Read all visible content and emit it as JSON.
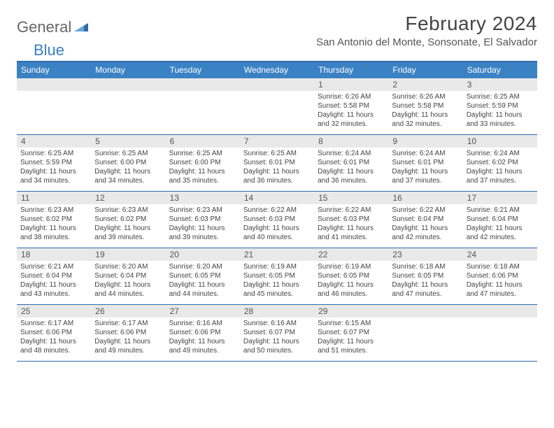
{
  "brand": {
    "part1": "General",
    "part2": "Blue"
  },
  "title": "February 2024",
  "location": "San Antonio del Monte, Sonsonate, El Salvador",
  "colors": {
    "header_bar": "#3b82c4",
    "rule": "#2f6aa8",
    "daynum_bg": "#e9e9e9",
    "text": "#444444",
    "brand_gray": "#666666",
    "brand_blue": "#3a7fc4",
    "background": "#ffffff"
  },
  "dows": [
    "Sunday",
    "Monday",
    "Tuesday",
    "Wednesday",
    "Thursday",
    "Friday",
    "Saturday"
  ],
  "weeks": [
    {
      "nums": [
        "",
        "",
        "",
        "",
        "1",
        "2",
        "3"
      ],
      "cells": [
        {
          "sunrise": "",
          "sunset": "",
          "daylight": ""
        },
        {
          "sunrise": "",
          "sunset": "",
          "daylight": ""
        },
        {
          "sunrise": "",
          "sunset": "",
          "daylight": ""
        },
        {
          "sunrise": "",
          "sunset": "",
          "daylight": ""
        },
        {
          "sunrise": "Sunrise: 6:26 AM",
          "sunset": "Sunset: 5:58 PM",
          "daylight": "Daylight: 11 hours and 32 minutes."
        },
        {
          "sunrise": "Sunrise: 6:26 AM",
          "sunset": "Sunset: 5:58 PM",
          "daylight": "Daylight: 11 hours and 32 minutes."
        },
        {
          "sunrise": "Sunrise: 6:25 AM",
          "sunset": "Sunset: 5:59 PM",
          "daylight": "Daylight: 11 hours and 33 minutes."
        }
      ]
    },
    {
      "nums": [
        "4",
        "5",
        "6",
        "7",
        "8",
        "9",
        "10"
      ],
      "cells": [
        {
          "sunrise": "Sunrise: 6:25 AM",
          "sunset": "Sunset: 5:59 PM",
          "daylight": "Daylight: 11 hours and 34 minutes."
        },
        {
          "sunrise": "Sunrise: 6:25 AM",
          "sunset": "Sunset: 6:00 PM",
          "daylight": "Daylight: 11 hours and 34 minutes."
        },
        {
          "sunrise": "Sunrise: 6:25 AM",
          "sunset": "Sunset: 6:00 PM",
          "daylight": "Daylight: 11 hours and 35 minutes."
        },
        {
          "sunrise": "Sunrise: 6:25 AM",
          "sunset": "Sunset: 6:01 PM",
          "daylight": "Daylight: 11 hours and 36 minutes."
        },
        {
          "sunrise": "Sunrise: 6:24 AM",
          "sunset": "Sunset: 6:01 PM",
          "daylight": "Daylight: 11 hours and 36 minutes."
        },
        {
          "sunrise": "Sunrise: 6:24 AM",
          "sunset": "Sunset: 6:01 PM",
          "daylight": "Daylight: 11 hours and 37 minutes."
        },
        {
          "sunrise": "Sunrise: 6:24 AM",
          "sunset": "Sunset: 6:02 PM",
          "daylight": "Daylight: 11 hours and 37 minutes."
        }
      ]
    },
    {
      "nums": [
        "11",
        "12",
        "13",
        "14",
        "15",
        "16",
        "17"
      ],
      "cells": [
        {
          "sunrise": "Sunrise: 6:23 AM",
          "sunset": "Sunset: 6:02 PM",
          "daylight": "Daylight: 11 hours and 38 minutes."
        },
        {
          "sunrise": "Sunrise: 6:23 AM",
          "sunset": "Sunset: 6:02 PM",
          "daylight": "Daylight: 11 hours and 39 minutes."
        },
        {
          "sunrise": "Sunrise: 6:23 AM",
          "sunset": "Sunset: 6:03 PM",
          "daylight": "Daylight: 11 hours and 39 minutes."
        },
        {
          "sunrise": "Sunrise: 6:22 AM",
          "sunset": "Sunset: 6:03 PM",
          "daylight": "Daylight: 11 hours and 40 minutes."
        },
        {
          "sunrise": "Sunrise: 6:22 AM",
          "sunset": "Sunset: 6:03 PM",
          "daylight": "Daylight: 11 hours and 41 minutes."
        },
        {
          "sunrise": "Sunrise: 6:22 AM",
          "sunset": "Sunset: 6:04 PM",
          "daylight": "Daylight: 11 hours and 42 minutes."
        },
        {
          "sunrise": "Sunrise: 6:21 AM",
          "sunset": "Sunset: 6:04 PM",
          "daylight": "Daylight: 11 hours and 42 minutes."
        }
      ]
    },
    {
      "nums": [
        "18",
        "19",
        "20",
        "21",
        "22",
        "23",
        "24"
      ],
      "cells": [
        {
          "sunrise": "Sunrise: 6:21 AM",
          "sunset": "Sunset: 6:04 PM",
          "daylight": "Daylight: 11 hours and 43 minutes."
        },
        {
          "sunrise": "Sunrise: 6:20 AM",
          "sunset": "Sunset: 6:04 PM",
          "daylight": "Daylight: 11 hours and 44 minutes."
        },
        {
          "sunrise": "Sunrise: 6:20 AM",
          "sunset": "Sunset: 6:05 PM",
          "daylight": "Daylight: 11 hours and 44 minutes."
        },
        {
          "sunrise": "Sunrise: 6:19 AM",
          "sunset": "Sunset: 6:05 PM",
          "daylight": "Daylight: 11 hours and 45 minutes."
        },
        {
          "sunrise": "Sunrise: 6:19 AM",
          "sunset": "Sunset: 6:05 PM",
          "daylight": "Daylight: 11 hours and 46 minutes."
        },
        {
          "sunrise": "Sunrise: 6:18 AM",
          "sunset": "Sunset: 6:05 PM",
          "daylight": "Daylight: 11 hours and 47 minutes."
        },
        {
          "sunrise": "Sunrise: 6:18 AM",
          "sunset": "Sunset: 6:06 PM",
          "daylight": "Daylight: 11 hours and 47 minutes."
        }
      ]
    },
    {
      "nums": [
        "25",
        "26",
        "27",
        "28",
        "29",
        "",
        ""
      ],
      "cells": [
        {
          "sunrise": "Sunrise: 6:17 AM",
          "sunset": "Sunset: 6:06 PM",
          "daylight": "Daylight: 11 hours and 48 minutes."
        },
        {
          "sunrise": "Sunrise: 6:17 AM",
          "sunset": "Sunset: 6:06 PM",
          "daylight": "Daylight: 11 hours and 49 minutes."
        },
        {
          "sunrise": "Sunrise: 6:16 AM",
          "sunset": "Sunset: 6:06 PM",
          "daylight": "Daylight: 11 hours and 49 minutes."
        },
        {
          "sunrise": "Sunrise: 6:16 AM",
          "sunset": "Sunset: 6:07 PM",
          "daylight": "Daylight: 11 hours and 50 minutes."
        },
        {
          "sunrise": "Sunrise: 6:15 AM",
          "sunset": "Sunset: 6:07 PM",
          "daylight": "Daylight: 11 hours and 51 minutes."
        },
        {
          "sunrise": "",
          "sunset": "",
          "daylight": ""
        },
        {
          "sunrise": "",
          "sunset": "",
          "daylight": ""
        }
      ]
    }
  ]
}
